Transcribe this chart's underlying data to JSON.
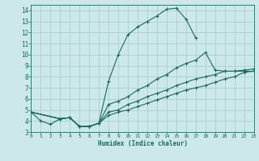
{
  "xlabel": "Humidex (Indice chaleur)",
  "bg_color": "#cce8e8",
  "grid_color": "#aacece",
  "line_color": "#1a6b5a",
  "lines": [
    {
      "x": [
        0,
        1,
        2,
        3,
        4,
        5,
        6,
        7,
        8,
        9,
        10,
        11,
        12,
        13,
        14,
        15,
        16,
        17
      ],
      "y": [
        4.8,
        4.0,
        3.7,
        4.2,
        4.3,
        3.5,
        3.5,
        3.8,
        7.6,
        10.0,
        11.8,
        12.5,
        13.0,
        13.5,
        14.1,
        14.2,
        13.2,
        11.5
      ]
    },
    {
      "x": [
        0,
        3,
        4,
        5,
        6,
        7,
        8,
        9,
        10,
        11,
        12,
        13,
        14,
        15,
        16,
        17,
        18,
        19,
        20,
        21,
        22,
        23
      ],
      "y": [
        4.8,
        4.2,
        4.3,
        3.5,
        3.5,
        3.8,
        5.5,
        5.8,
        6.2,
        6.8,
        7.2,
        7.8,
        8.2,
        8.8,
        9.2,
        9.5,
        10.2,
        8.6,
        8.5,
        8.5,
        8.5,
        8.5
      ]
    },
    {
      "x": [
        0,
        3,
        4,
        5,
        6,
        7,
        8,
        9,
        10,
        11,
        12,
        13,
        14,
        15,
        16,
        17,
        18,
        19,
        20,
        21,
        22,
        23
      ],
      "y": [
        4.8,
        4.2,
        4.3,
        3.5,
        3.5,
        3.8,
        4.8,
        5.0,
        5.5,
        5.8,
        6.2,
        6.5,
        6.8,
        7.2,
        7.5,
        7.8,
        8.0,
        8.2,
        8.5,
        8.5,
        8.6,
        8.7
      ]
    },
    {
      "x": [
        0,
        3,
        4,
        5,
        6,
        7,
        8,
        9,
        10,
        11,
        12,
        13,
        14,
        15,
        16,
        17,
        18,
        19,
        20,
        21,
        22,
        23
      ],
      "y": [
        4.8,
        4.2,
        4.3,
        3.5,
        3.5,
        3.8,
        4.5,
        4.8,
        5.0,
        5.3,
        5.6,
        5.9,
        6.2,
        6.5,
        6.8,
        7.0,
        7.2,
        7.5,
        7.8,
        8.0,
        8.4,
        8.5
      ]
    }
  ],
  "xlim": [
    0,
    23
  ],
  "ylim": [
    3,
    14.5
  ],
  "yticks": [
    3,
    4,
    5,
    6,
    7,
    8,
    9,
    10,
    11,
    12,
    13,
    14
  ],
  "xticks": [
    0,
    1,
    2,
    3,
    4,
    5,
    6,
    7,
    8,
    9,
    10,
    11,
    12,
    13,
    14,
    15,
    16,
    17,
    18,
    19,
    20,
    21,
    22,
    23
  ]
}
